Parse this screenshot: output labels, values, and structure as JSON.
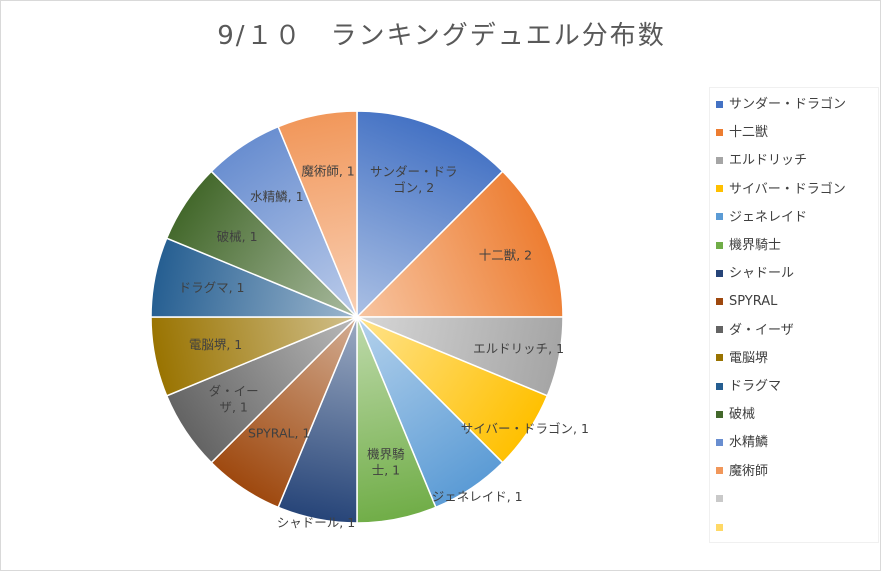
{
  "chart_data": {
    "type": "pie",
    "title": "9/１０　ランキングデュエル分布数",
    "slices": [
      {
        "label": "サンダー・ドラゴン",
        "value": 2,
        "color": "#4472c4"
      },
      {
        "label": "十二獣",
        "value": 2,
        "color": "#ed7d31"
      },
      {
        "label": "エルドリッチ",
        "value": 1,
        "color": "#a5a5a5"
      },
      {
        "label": "サイバー・ドラゴン",
        "value": 1,
        "color": "#ffc000"
      },
      {
        "label": "ジェネレイド",
        "value": 1,
        "color": "#5b9bd5"
      },
      {
        "label": "機界騎士",
        "value": 1,
        "color": "#70ad47"
      },
      {
        "label": "シャドール",
        "value": 1,
        "color": "#264478"
      },
      {
        "label": "SPYRAL",
        "value": 1,
        "color": "#9e480e"
      },
      {
        "label": "ダ・イーザ",
        "value": 1,
        "color": "#636363"
      },
      {
        "label": "電脳堺",
        "value": 1,
        "color": "#997300"
      },
      {
        "label": "ドラグマ",
        "value": 1,
        "color": "#255e91"
      },
      {
        "label": "破械",
        "value": 1,
        "color": "#43682b"
      },
      {
        "label": "水精鱗",
        "value": 1,
        "color": "#698ed0"
      },
      {
        "label": "魔術師",
        "value": 1,
        "color": "#f1975a"
      }
    ],
    "data_labels": [
      [
        "サンダー・ドラ",
        "ゴン, 2"
      ],
      [
        "十二獣, 2"
      ],
      [
        "エルドリッチ, 1"
      ],
      [
        "サイバー・ドラゴン, 1"
      ],
      [
        "ジェネレイド, 1"
      ],
      [
        "機界騎",
        "士, 1"
      ],
      [
        "シャドール, 1"
      ],
      [
        "SPYRAL, 1"
      ],
      [
        "ダ・イー",
        "ザ, 1"
      ],
      [
        "電脳堺, 1"
      ],
      [
        "ドラグマ, 1"
      ],
      [
        "破械, 1"
      ],
      [
        "水精鱗, 1"
      ],
      [
        "魔術師, 1"
      ]
    ],
    "legend": {
      "position": "right",
      "entries": [
        {
          "label": "サンダー・ドラゴン",
          "color": "#4472c4"
        },
        {
          "label": "十二獣",
          "color": "#ed7d31"
        },
        {
          "label": "エルドリッチ",
          "color": "#a5a5a5"
        },
        {
          "label": "サイバー・ドラゴン",
          "color": "#ffc000"
        },
        {
          "label": "ジェネレイド",
          "color": "#5b9bd5"
        },
        {
          "label": "機界騎士",
          "color": "#70ad47"
        },
        {
          "label": "シャドール",
          "color": "#264478"
        },
        {
          "label": "SPYRAL",
          "color": "#9e480e"
        },
        {
          "label": "ダ・イーザ",
          "color": "#636363"
        },
        {
          "label": "電脳堺",
          "color": "#997300"
        },
        {
          "label": "ドラグマ",
          "color": "#255e91"
        },
        {
          "label": "破械",
          "color": "#43682b"
        },
        {
          "label": "水精鱗",
          "color": "#698ed0"
        },
        {
          "label": "魔術師",
          "color": "#f1975a"
        },
        {
          "label": "",
          "color": "#c9c9c9"
        },
        {
          "label": "",
          "color": "#ffd966"
        }
      ]
    }
  }
}
